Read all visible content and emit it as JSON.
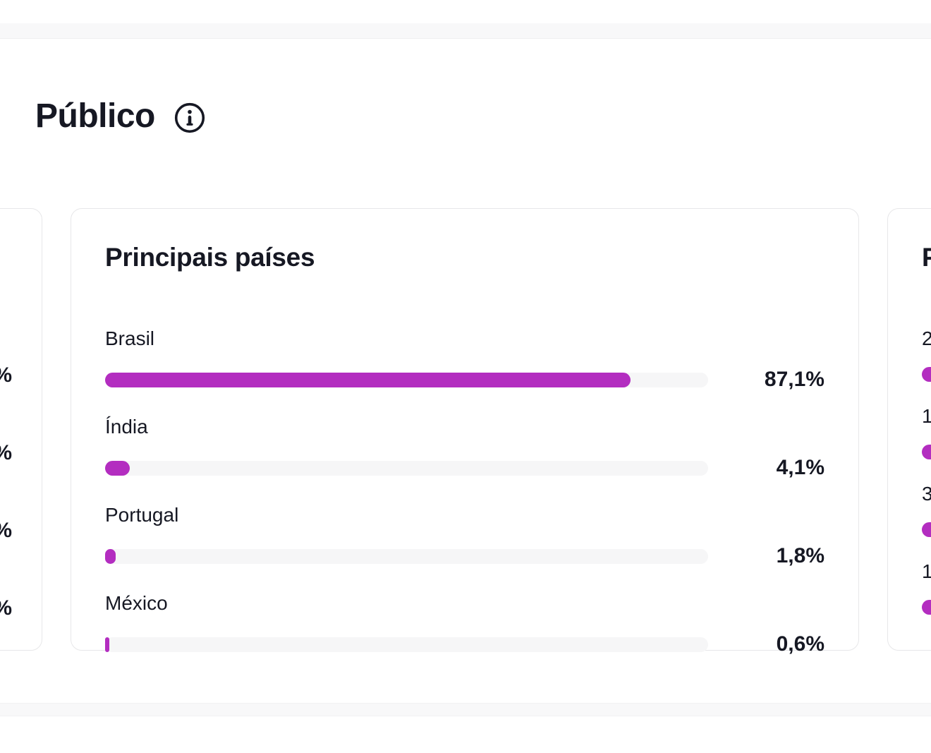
{
  "colors": {
    "accent": "#B32DC0",
    "text": "#161823",
    "bar_track": "#F6F6F7",
    "card_border": "#E7E7E9",
    "separator_band": "#F8F8F9"
  },
  "header": {
    "title": "Público",
    "info_icon": "info-icon"
  },
  "cards": {
    "left_partial": {
      "value_fragments": [
        "%",
        "%",
        "%",
        "%"
      ]
    },
    "top_countries": {
      "title": "Principais países",
      "rows": [
        {
          "label": "Brasil",
          "value": "87,1%",
          "percent": 87.1
        },
        {
          "label": "Índia",
          "value": "4,1%",
          "percent": 4.1
        },
        {
          "label": "Portugal",
          "value": "1,8%",
          "percent": 1.8
        },
        {
          "label": "México",
          "value": "0,6%",
          "percent": 0.6
        }
      ]
    },
    "right_partial": {
      "title_fragment": "P",
      "label_fragments": [
        "2",
        "1",
        "3",
        "1"
      ]
    }
  },
  "chart_data": {
    "type": "bar",
    "orientation": "horizontal",
    "title": "Principais países",
    "categories": [
      "Brasil",
      "Índia",
      "Portugal",
      "México"
    ],
    "values": [
      87.1,
      4.1,
      1.8,
      0.6
    ],
    "value_labels": [
      "87,1%",
      "4,1%",
      "1,8%",
      "0,6%"
    ],
    "xlim": [
      0,
      100
    ],
    "unit": "%",
    "grid": false,
    "legend": false
  }
}
